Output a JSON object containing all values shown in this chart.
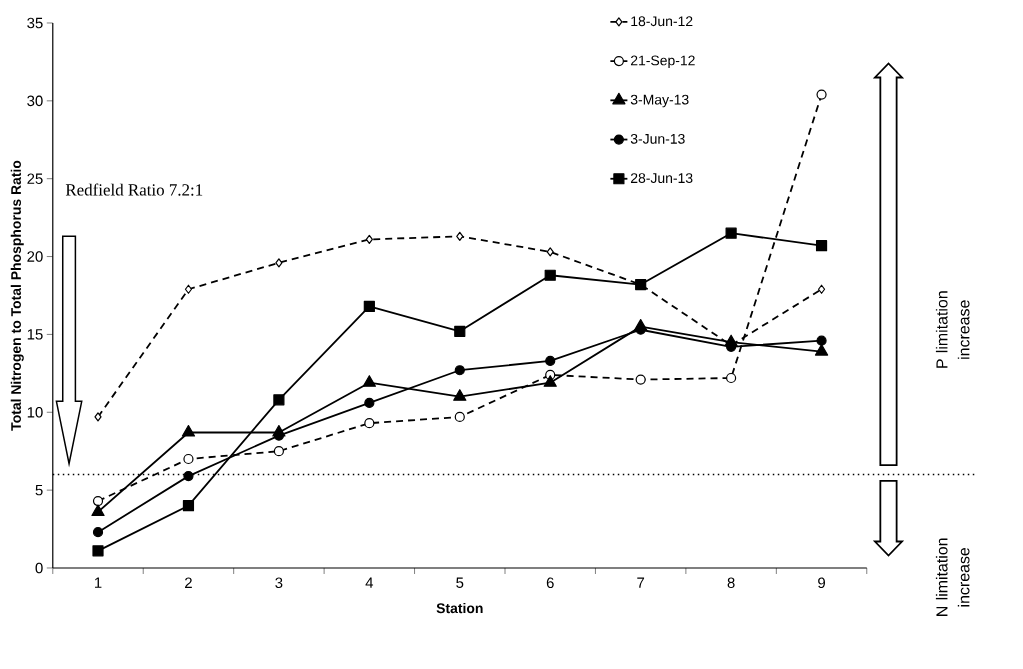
{
  "chart_data": {
    "type": "line",
    "xlabel": "Station",
    "ylabel": "Total Nitrogen to Total Phosphorus Ratio",
    "categories": [
      "1",
      "2",
      "3",
      "4",
      "5",
      "6",
      "7",
      "8",
      "9"
    ],
    "ylim": [
      0,
      35
    ],
    "yticks": [
      0,
      5,
      10,
      15,
      20,
      25,
      30,
      35
    ],
    "legend": "top right",
    "series": [
      {
        "name": "18-Jun-12",
        "color": "#000000",
        "marker": "diamond",
        "line_style": "dashed",
        "values": [
          9.7,
          17.9,
          19.6,
          21.1,
          21.3,
          20.3,
          18.2,
          14.3,
          17.9
        ]
      },
      {
        "name": "21-Sep-12",
        "color": "#000000",
        "marker": "circle",
        "line_style": "dashed",
        "values": [
          4.3,
          7.0,
          7.5,
          9.3,
          9.7,
          12.4,
          12.1,
          12.2,
          30.4
        ]
      },
      {
        "name": "3-May-13",
        "color": "#000000",
        "marker": "triangle",
        "line_style": "solid",
        "values": [
          3.6,
          8.7,
          8.7,
          11.9,
          11.0,
          11.9,
          15.5,
          14.5,
          13.9
        ]
      },
      {
        "name": "3-Jun-13",
        "color": "#000000",
        "marker": "circle",
        "line_style": "solid",
        "values": [
          2.3,
          5.9,
          8.5,
          10.6,
          12.7,
          13.3,
          15.3,
          14.2,
          14.6
        ]
      },
      {
        "name": "28-Jun-13",
        "color": "#000000",
        "marker": "square",
        "line_style": "solid",
        "values": [
          1.1,
          4.0,
          10.8,
          16.8,
          15.2,
          18.8,
          18.2,
          21.5,
          20.7
        ]
      }
    ],
    "ref_lines": [
      {
        "axis": "y",
        "value": 6,
        "color": "#000000",
        "line_style": "dotted"
      }
    ],
    "annotations": [
      "Redfield Ratio 7.2:1",
      "P limitation increase",
      "N limitation increase"
    ]
  }
}
